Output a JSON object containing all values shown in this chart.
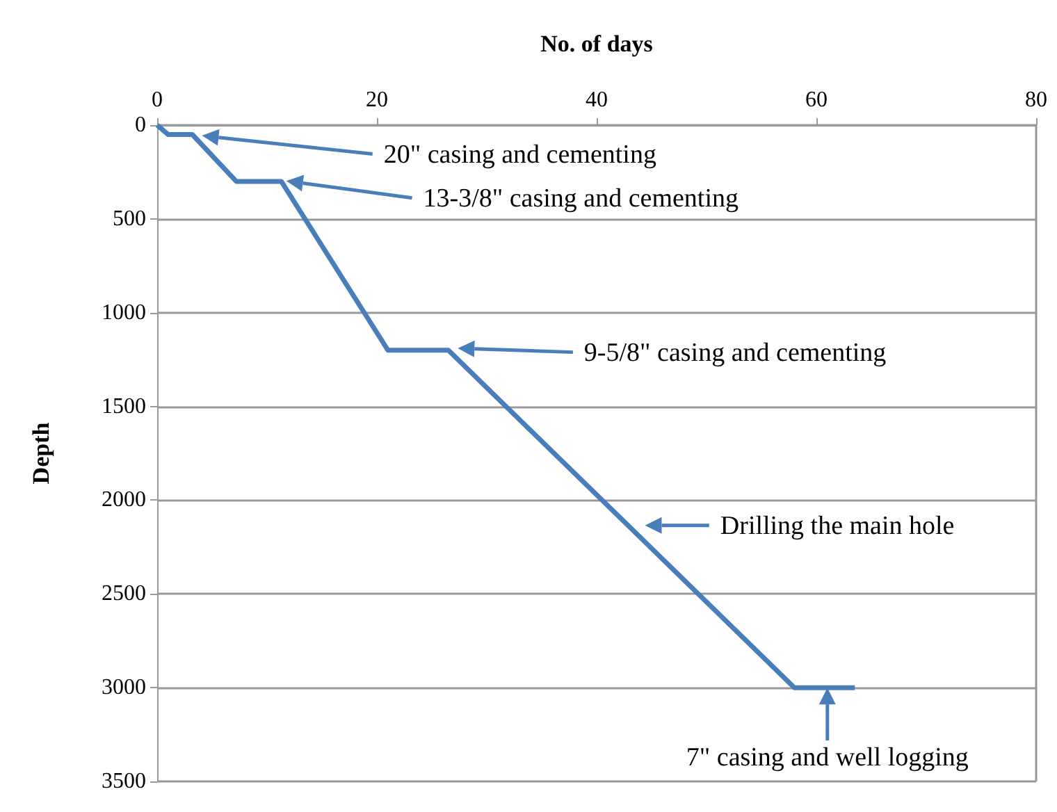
{
  "chart_data": {
    "type": "line",
    "xlabel": "No. of days",
    "ylabel": "Depth",
    "x": [
      0,
      1,
      3.2,
      7.2,
      11.3,
      21,
      26.5,
      58,
      63.5
    ],
    "series": [
      {
        "color": "#4a7ebb",
        "values": [
          0,
          50,
          50,
          300,
          300,
          1200,
          1200,
          3000,
          3000
        ]
      }
    ],
    "xlim": [
      0,
      80
    ],
    "xticks": [
      0,
      20,
      40,
      60,
      80
    ],
    "ylim": [
      3500,
      0
    ],
    "yticks": [
      0,
      500,
      1000,
      1500,
      2000,
      2500,
      3000,
      3500
    ],
    "grid": "y",
    "marker": "none",
    "line_style": "solid",
    "annotations": [
      "20\" casing and cementing",
      "13-3/8\" casing and cementing",
      "9-5/8\" casing and cementing",
      "Drilling the main hole",
      {
        "text": "7\" casing and well logging",
        "x": 61,
        "y": 3000
      }
    ]
  }
}
